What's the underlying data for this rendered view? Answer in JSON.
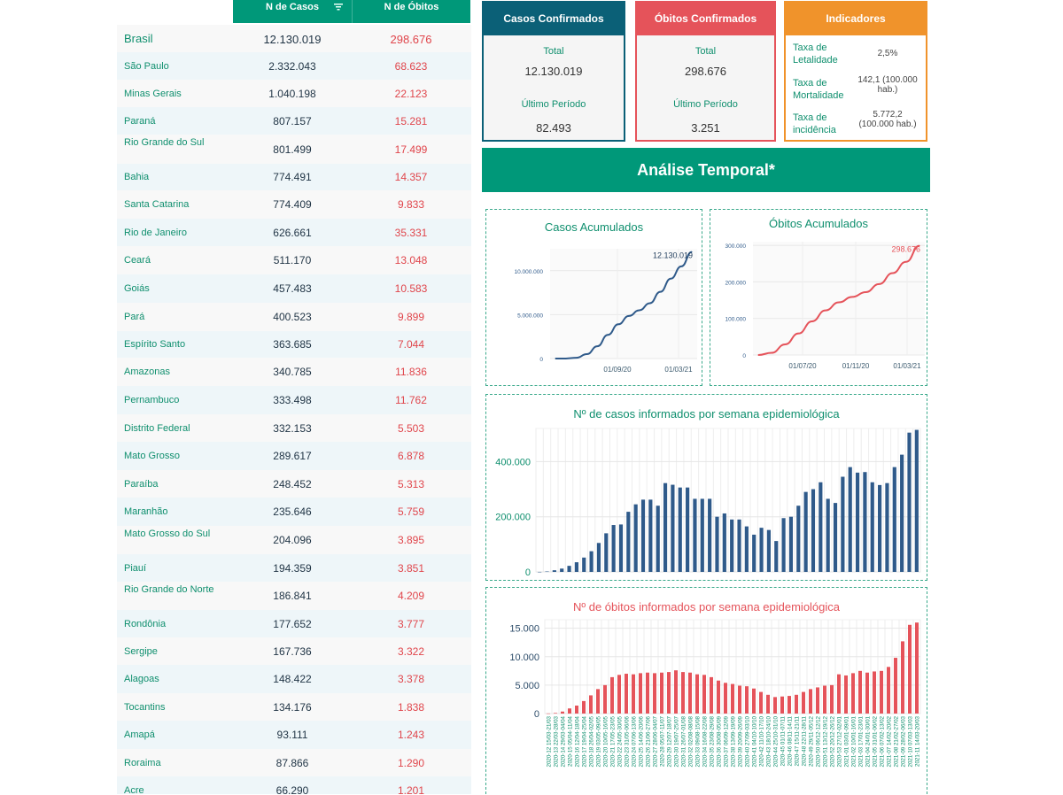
{
  "table": {
    "header_cases": "N de Casos",
    "header_deaths": "N de Óbitos",
    "rows": [
      {
        "state": "Brasil",
        "cases": "12.130.019",
        "deaths": "298.676"
      },
      {
        "state": "São Paulo",
        "cases": "2.332.043",
        "deaths": "68.623"
      },
      {
        "state": "Minas Gerais",
        "cases": "1.040.198",
        "deaths": "22.123"
      },
      {
        "state": "Paraná",
        "cases": "807.157",
        "deaths": "15.281"
      },
      {
        "state": "Rio Grande do Sul",
        "cases": "801.499",
        "deaths": "17.499"
      },
      {
        "state": "Bahia",
        "cases": "774.491",
        "deaths": "14.357"
      },
      {
        "state": "Santa Catarina",
        "cases": "774.409",
        "deaths": "9.833"
      },
      {
        "state": "Rio de Janeiro",
        "cases": "626.661",
        "deaths": "35.331"
      },
      {
        "state": "Ceará",
        "cases": "511.170",
        "deaths": "13.048"
      },
      {
        "state": "Goiás",
        "cases": "457.483",
        "deaths": "10.583"
      },
      {
        "state": "Pará",
        "cases": "400.523",
        "deaths": "9.899"
      },
      {
        "state": "Espírito Santo",
        "cases": "363.685",
        "deaths": "7.044"
      },
      {
        "state": "Amazonas",
        "cases": "340.785",
        "deaths": "11.836"
      },
      {
        "state": "Pernambuco",
        "cases": "333.498",
        "deaths": "11.762"
      },
      {
        "state": "Distrito Federal",
        "cases": "332.153",
        "deaths": "5.503"
      },
      {
        "state": "Mato Grosso",
        "cases": "289.617",
        "deaths": "6.878"
      },
      {
        "state": "Paraíba",
        "cases": "248.452",
        "deaths": "5.313"
      },
      {
        "state": "Maranhão",
        "cases": "235.646",
        "deaths": "5.759"
      },
      {
        "state": "Mato Grosso do Sul",
        "cases": "204.096",
        "deaths": "3.895"
      },
      {
        "state": "Piauí",
        "cases": "194.359",
        "deaths": "3.851"
      },
      {
        "state": "Rio Grande do Norte",
        "cases": "186.841",
        "deaths": "4.209"
      },
      {
        "state": "Rondônia",
        "cases": "177.652",
        "deaths": "3.777"
      },
      {
        "state": "Sergipe",
        "cases": "167.736",
        "deaths": "3.322"
      },
      {
        "state": "Alagoas",
        "cases": "148.422",
        "deaths": "3.378"
      },
      {
        "state": "Tocantins",
        "cases": "134.176",
        "deaths": "1.838"
      },
      {
        "state": "Amapá",
        "cases": "93.111",
        "deaths": "1.243"
      },
      {
        "state": "Roraima",
        "cases": "87.866",
        "deaths": "1.290"
      },
      {
        "state": "Acre",
        "cases": "66.290",
        "deaths": "1.201"
      }
    ]
  },
  "cards": {
    "cases": {
      "title": "Casos Confirmados",
      "total_label": "Total",
      "total": "12.130.019",
      "period_label": "Último Período",
      "period": "82.493",
      "color": "#0b6077"
    },
    "deaths": {
      "title": "Óbitos Confirmados",
      "total_label": "Total",
      "total": "298.676",
      "period_label": "Último Período",
      "period": "3.251",
      "color": "#e5535a"
    },
    "indicators": {
      "title": "Indicadores",
      "color": "#f0932b",
      "items": [
        {
          "label": "Taxa de Letalidade",
          "value": "2,5%"
        },
        {
          "label": "Taxa de Mortalidade",
          "value": "142,1 (100.000 hab.)"
        },
        {
          "label": "Taxa de incidência",
          "value": "5.772,2 (100.000 hab.)"
        }
      ]
    }
  },
  "section_title": "Análise Temporal*",
  "colors": {
    "teal": "#009879",
    "blue": "#2f5a8a",
    "red": "#e5535a"
  },
  "chart_data": [
    {
      "type": "line",
      "title": "Casos Acumulados",
      "x_ticks": [
        "01/09/20",
        "01/03/21"
      ],
      "y_ticks": [
        "0",
        "5.000.000",
        "10.000.000"
      ],
      "ylim": [
        0,
        12500000
      ],
      "x": [
        "2020-02",
        "2020-03",
        "2020-04",
        "2020-05",
        "2020-06",
        "2020-07",
        "2020-08",
        "2020-09",
        "2020-10",
        "2020-11",
        "2020-12",
        "2021-01",
        "2021-02",
        "2021-03"
      ],
      "values": [
        0,
        5000,
        85000,
        500000,
        1400000,
        2700000,
        3900000,
        4850000,
        5500000,
        6300000,
        7600000,
        9100000,
        10500000,
        12130019
      ],
      "end_label": "12.130.019"
    },
    {
      "type": "line",
      "title": "Óbitos Acumulados",
      "x_ticks": [
        "01/07/20",
        "01/11/20",
        "01/03/21"
      ],
      "y_ticks": [
        "0",
        "100.000",
        "200.000",
        "300.000"
      ],
      "ylim": [
        0,
        310000
      ],
      "x": [
        "2020-03",
        "2020-04",
        "2020-05",
        "2020-06",
        "2020-07",
        "2020-08",
        "2020-09",
        "2020-10",
        "2020-11",
        "2020-12",
        "2021-01",
        "2021-02",
        "2021-03"
      ],
      "values": [
        0,
        6000,
        29000,
        59000,
        92000,
        122000,
        144000,
        159000,
        172000,
        194000,
        224000,
        255000,
        298676
      ],
      "end_label": "298.676"
    },
    {
      "type": "bar",
      "title": "Nº de casos informados por semana epidemiológica",
      "y_ticks": [
        "0",
        "200.000",
        "400.000"
      ],
      "ylim": [
        0,
        520000
      ],
      "values": [
        200,
        1500,
        6000,
        12000,
        22000,
        35000,
        52000,
        75000,
        105000,
        140000,
        170000,
        172000,
        218000,
        245000,
        262000,
        262000,
        240000,
        322000,
        316000,
        306000,
        306000,
        265000,
        265000,
        265000,
        200000,
        212000,
        190000,
        190000,
        165000,
        135000,
        160000,
        152000,
        112000,
        195000,
        200000,
        240000,
        290000,
        300000,
        325000,
        265000,
        250000,
        345000,
        380000,
        360000,
        362000,
        325000,
        315000,
        322000,
        380000,
        425000,
        505000,
        515000
      ]
    },
    {
      "type": "bar",
      "title": "Nº de óbitos informados por semana epidemiológica",
      "y_ticks": [
        "0",
        "5.000",
        "10.000",
        "15.000"
      ],
      "ylim": [
        0,
        16500
      ],
      "categories": [
        "2020-12 15/03-21/03",
        "2020-13 22/03-28/03",
        "2020-14 29/03-04/04",
        "2020-15 05/04-11/04",
        "2020-16 12/04-18/04",
        "2020-17 19/04-25/04",
        "2020-18 26/04-02/05",
        "2020-19 03/05-09/05",
        "2020-20 10/05-16/05",
        "2020-21 17/05-23/05",
        "2020-22 24/05-30/05",
        "2020-23 31/05-06/06",
        "2020-24 07/06-13/06",
        "2020-25 14/06-20/06",
        "2020-26 21/06-27/06",
        "2020-27 28/06-04/07",
        "2020-28 05/07-11/07",
        "2020-29 12/07-18/07",
        "2020-30 19/07-25/07",
        "2020-31 26/07-01/08",
        "2020-32 02/08-08/08",
        "2020-33 09/08-15/08",
        "2020-34 16/08-22/08",
        "2020-35 23/08-29/08",
        "2020-36 30/08-05/09",
        "2020-37 06/09-12/09",
        "2020-38 13/09-19/09",
        "2020-39 20/09-26/09",
        "2020-40 27/09-03/10",
        "2020-41 04/10-10/10",
        "2020-42 11/10-17/10",
        "2020-43 18/10-24/10",
        "2020-44 25/10-31/10",
        "2020-45 01/11-07/11",
        "2020-46 08/11-14/11",
        "2020-47 15/11-21/11",
        "2020-48 22/11-28/11",
        "2020-49 29/11-05/12",
        "2020-50 06/12-12/12",
        "2020-51 13/12-19/12",
        "2020-52 20/12-26/12",
        "2020-53 27/12-02/01",
        "2021-01 03/01-09/01",
        "2021-02 10/01-16/01",
        "2021-03 17/01-23/01",
        "2021-04 24/01-30/01",
        "2021-05 31/01-06/02",
        "2021-06 07/02-13/02",
        "2021-07 14/02-20/02",
        "2021-08 21/02-27/02",
        "2021-09 28/02-06/03",
        "2021-10 07/03-13/03",
        "2021-11 14/03-20/03"
      ],
      "values": [
        20,
        100,
        350,
        900,
        1400,
        2200,
        3200,
        4300,
        5000,
        6400,
        6800,
        7000,
        6900,
        7100,
        7200,
        7100,
        7200,
        7300,
        7600,
        7300,
        7200,
        6900,
        6800,
        6400,
        5800,
        5400,
        5200,
        4900,
        4800,
        4400,
        3800,
        3300,
        2900,
        3000,
        3100,
        3300,
        3800,
        4300,
        4600,
        4900,
        5000,
        6900,
        6700,
        7100,
        7500,
        7200,
        7400,
        7500,
        8200,
        9800,
        12700,
        15600,
        16000
      ]
    }
  ]
}
